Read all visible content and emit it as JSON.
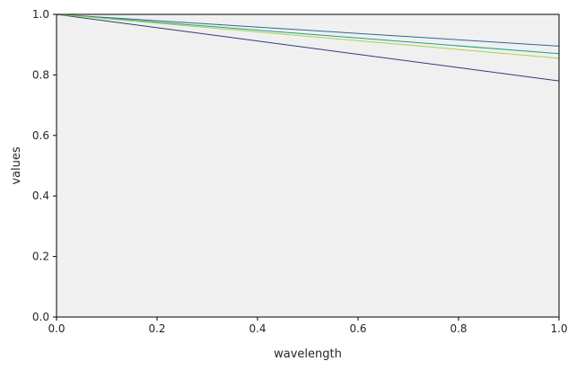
{
  "chart_data": {
    "type": "line",
    "title": "",
    "xlabel": "wavelength",
    "ylabel": "values",
    "xlim": [
      0.0,
      1.0
    ],
    "ylim": [
      0.0,
      1.0
    ],
    "xticks": [
      "0.0",
      "0.2",
      "0.4",
      "0.6",
      "0.8",
      "1.0"
    ],
    "yticks": [
      "0.0",
      "0.2",
      "0.4",
      "0.6",
      "0.8",
      "1.0"
    ],
    "grid": false,
    "background_color": "#f0f0f0",
    "series": [
      {
        "color": "#2d3e7c",
        "x": [
          0.0,
          1.0
        ],
        "y": [
          1.0,
          0.78
        ]
      },
      {
        "color": "#2f6a8e",
        "x": [
          0.0,
          1.0
        ],
        "y": [
          1.0,
          0.895
        ]
      },
      {
        "color": "#20a286",
        "x": [
          0.0,
          1.0
        ],
        "y": [
          1.0,
          0.87
        ]
      },
      {
        "color": "#a6d64a",
        "x": [
          0.0,
          1.0
        ],
        "y": [
          1.0,
          0.855
        ]
      }
    ]
  }
}
